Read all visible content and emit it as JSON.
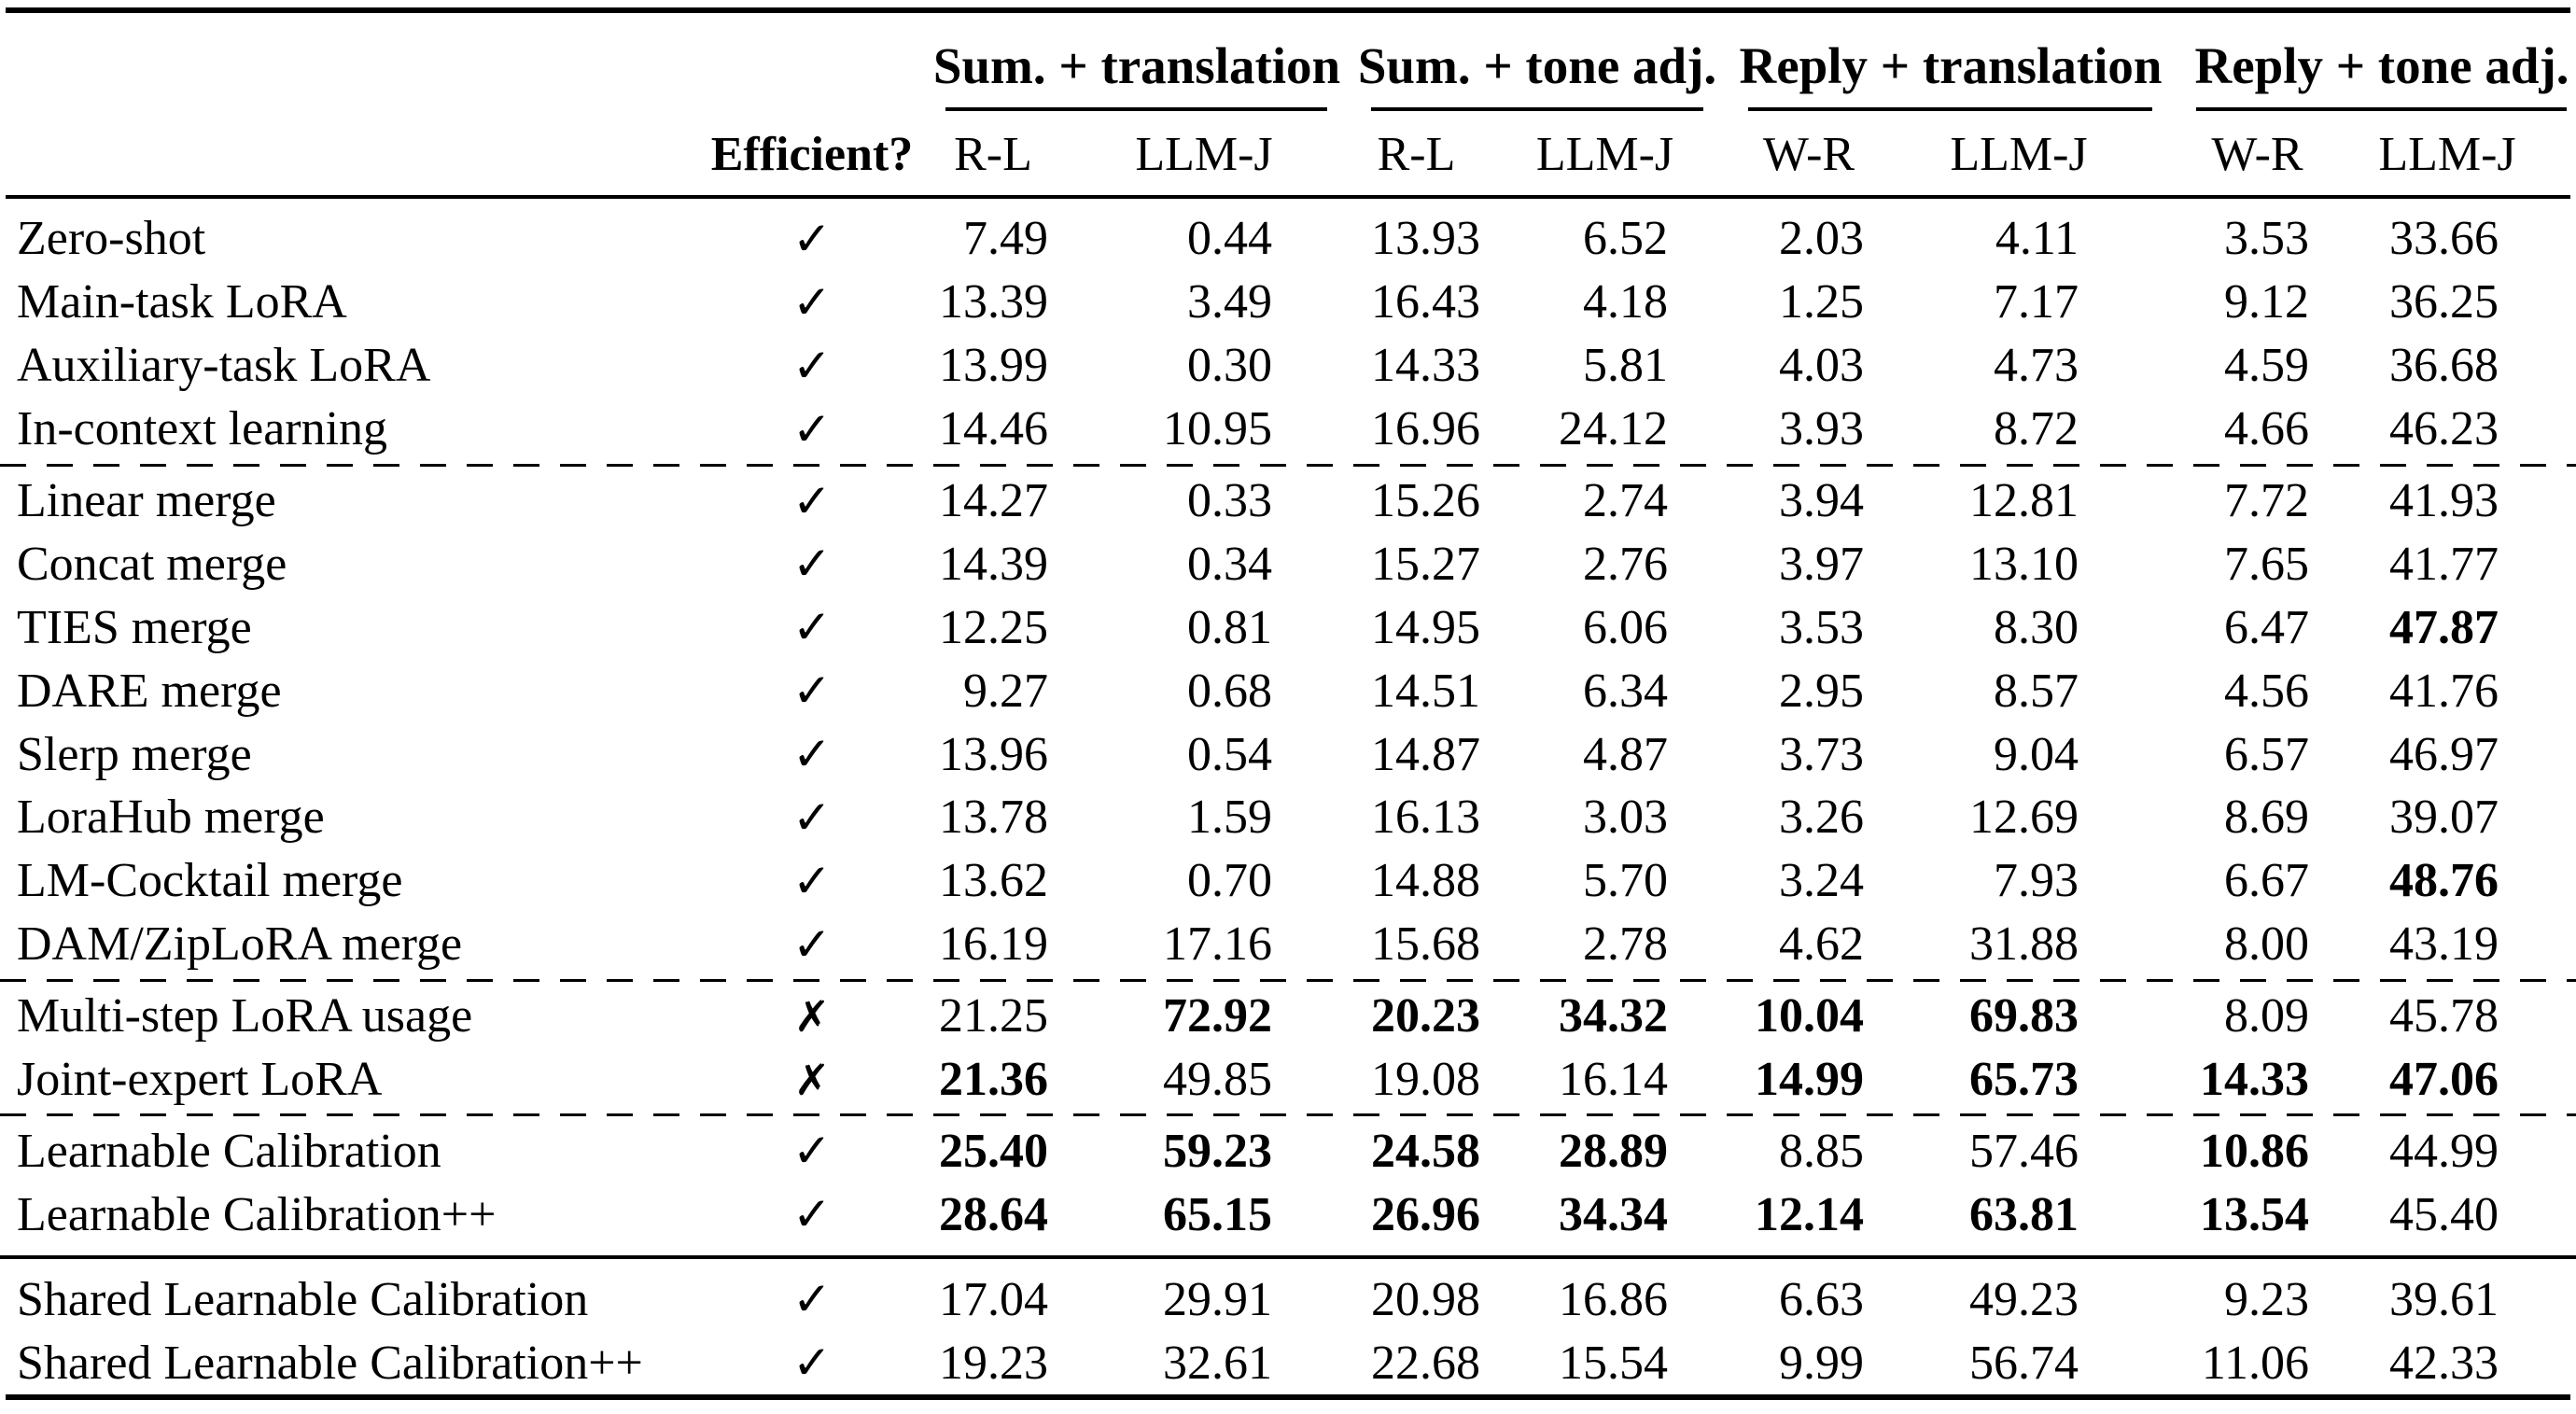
{
  "table": {
    "efficient_header": "Efficient?",
    "icons": {
      "efficient_yes": "✓",
      "efficient_no": "✗"
    },
    "colors": {
      "text": "#000000",
      "background": "#ffffff"
    },
    "group_headers": [
      {
        "label": "Sum. + translation",
        "metrics": [
          "R-L",
          "LLM-J"
        ]
      },
      {
        "label": "Sum. + tone adj.",
        "metrics": [
          "R-L",
          "LLM-J"
        ]
      },
      {
        "label": "Reply + translation",
        "metrics": [
          "W-R",
          "LLM-J"
        ]
      },
      {
        "label": "Reply + tone adj.",
        "metrics": [
          "W-R",
          "LLM-J"
        ]
      }
    ],
    "rows": [
      {
        "method": "Zero-shot",
        "efficient": true,
        "rule_above": null,
        "values": [
          "7.49",
          "0.44",
          "13.93",
          "6.52",
          "2.03",
          "4.11",
          "3.53",
          "33.66"
        ],
        "bold": []
      },
      {
        "method": "Main-task LoRA",
        "efficient": true,
        "rule_above": null,
        "values": [
          "13.39",
          "3.49",
          "16.43",
          "4.18",
          "1.25",
          "7.17",
          "9.12",
          "36.25"
        ],
        "bold": []
      },
      {
        "method": "Auxiliary-task LoRA",
        "efficient": true,
        "rule_above": null,
        "values": [
          "13.99",
          "0.30",
          "14.33",
          "5.81",
          "4.03",
          "4.73",
          "4.59",
          "36.68"
        ],
        "bold": []
      },
      {
        "method": "In-context learning",
        "efficient": true,
        "rule_above": null,
        "values": [
          "14.46",
          "10.95",
          "16.96",
          "24.12",
          "3.93",
          "8.72",
          "4.66",
          "46.23"
        ],
        "bold": []
      },
      {
        "method": "Linear merge",
        "efficient": true,
        "rule_above": "dashed",
        "values": [
          "14.27",
          "0.33",
          "15.26",
          "2.74",
          "3.94",
          "12.81",
          "7.72",
          "41.93"
        ],
        "bold": []
      },
      {
        "method": "Concat merge",
        "efficient": true,
        "rule_above": null,
        "values": [
          "14.39",
          "0.34",
          "15.27",
          "2.76",
          "3.97",
          "13.10",
          "7.65",
          "41.77"
        ],
        "bold": []
      },
      {
        "method": "TIES merge",
        "efficient": true,
        "rule_above": null,
        "values": [
          "12.25",
          "0.81",
          "14.95",
          "6.06",
          "3.53",
          "8.30",
          "6.47",
          "47.87"
        ],
        "bold": [
          7
        ]
      },
      {
        "method": "DARE merge",
        "efficient": true,
        "rule_above": null,
        "values": [
          "9.27",
          "0.68",
          "14.51",
          "6.34",
          "2.95",
          "8.57",
          "4.56",
          "41.76"
        ],
        "bold": []
      },
      {
        "method": "Slerp merge",
        "efficient": true,
        "rule_above": null,
        "values": [
          "13.96",
          "0.54",
          "14.87",
          "4.87",
          "3.73",
          "9.04",
          "6.57",
          "46.97"
        ],
        "bold": []
      },
      {
        "method": "LoraHub merge",
        "efficient": true,
        "rule_above": null,
        "values": [
          "13.78",
          "1.59",
          "16.13",
          "3.03",
          "3.26",
          "12.69",
          "8.69",
          "39.07"
        ],
        "bold": []
      },
      {
        "method": "LM-Cocktail merge",
        "efficient": true,
        "rule_above": null,
        "values": [
          "13.62",
          "0.70",
          "14.88",
          "5.70",
          "3.24",
          "7.93",
          "6.67",
          "48.76"
        ],
        "bold": [
          7
        ]
      },
      {
        "method": "DAM/ZipLoRA merge",
        "efficient": true,
        "rule_above": null,
        "values": [
          "16.19",
          "17.16",
          "15.68",
          "2.78",
          "4.62",
          "31.88",
          "8.00",
          "43.19"
        ],
        "bold": []
      },
      {
        "method": "Multi-step LoRA usage",
        "efficient": false,
        "rule_above": "dashed",
        "values": [
          "21.25",
          "72.92",
          "20.23",
          "34.32",
          "10.04",
          "69.83",
          "8.09",
          "45.78"
        ],
        "bold": [
          1,
          2,
          3,
          4,
          5
        ]
      },
      {
        "method": "Joint-expert LoRA",
        "efficient": false,
        "rule_above": null,
        "values": [
          "21.36",
          "49.85",
          "19.08",
          "16.14",
          "14.99",
          "65.73",
          "14.33",
          "47.06"
        ],
        "bold": [
          0,
          4,
          5,
          6,
          7
        ]
      },
      {
        "method": "Learnable Calibration",
        "efficient": true,
        "rule_above": "dashed",
        "values": [
          "25.40",
          "59.23",
          "24.58",
          "28.89",
          "8.85",
          "57.46",
          "10.86",
          "44.99"
        ],
        "bold": [
          0,
          1,
          2,
          3,
          6
        ]
      },
      {
        "method": "Learnable Calibration++",
        "efficient": true,
        "rule_above": null,
        "values": [
          "28.64",
          "65.15",
          "26.96",
          "34.34",
          "12.14",
          "63.81",
          "13.54",
          "45.40"
        ],
        "bold": [
          0,
          1,
          2,
          3,
          4,
          5,
          6
        ]
      },
      {
        "method": "Shared Learnable Calibration",
        "efficient": true,
        "rule_above": "solid",
        "values": [
          "17.04",
          "29.91",
          "20.98",
          "16.86",
          "6.63",
          "49.23",
          "9.23",
          "39.61"
        ],
        "bold": []
      },
      {
        "method": "Shared Learnable Calibration++",
        "efficient": true,
        "rule_above": null,
        "values": [
          "19.23",
          "32.61",
          "22.68",
          "15.54",
          "9.99",
          "56.74",
          "11.06",
          "42.33"
        ],
        "bold": []
      }
    ]
  }
}
